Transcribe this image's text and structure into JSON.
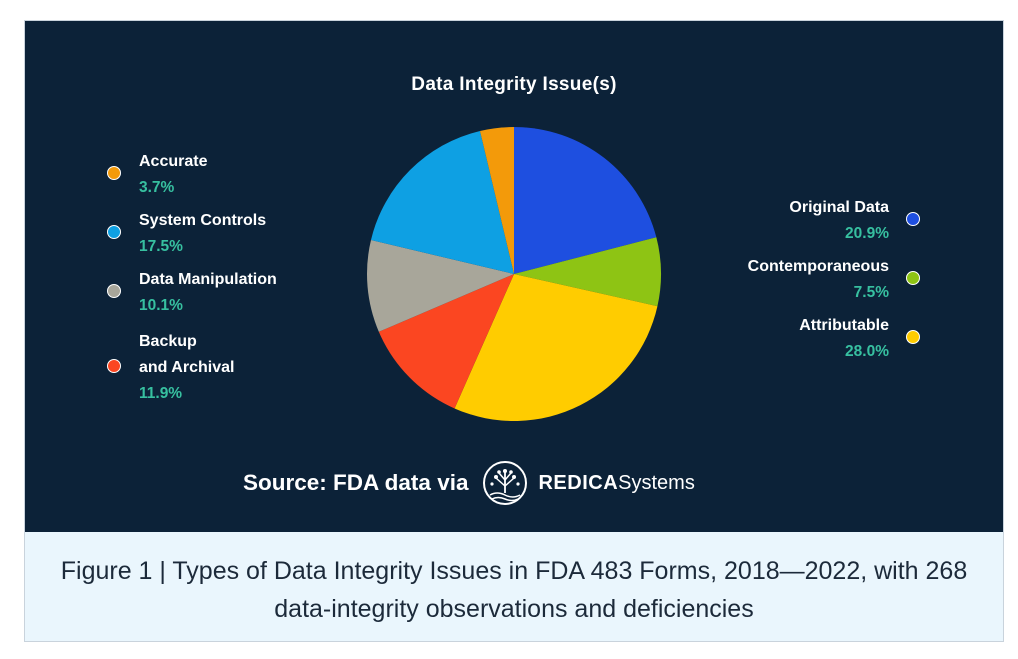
{
  "colors": {
    "background": "#0c2238",
    "percent_text": "#37c0a0",
    "caption_background": "#eaf6fd"
  },
  "chart_data": {
    "type": "pie",
    "title": "Data Integrity Issue(s)",
    "slices": [
      {
        "label": "Original Data",
        "value": 20.9,
        "display": "20.9%",
        "color": "#1e4fe0"
      },
      {
        "label": "Contemporaneous",
        "value": 7.5,
        "display": "7.5%",
        "color": "#8ec414"
      },
      {
        "label": "Attributable",
        "value": 28.0,
        "display": "28.0%",
        "color": "#ffcc00"
      },
      {
        "label": "Backup and Archival",
        "value": 11.9,
        "display": "11.9%",
        "color": "#fb4621"
      },
      {
        "label": "Data Manipulation",
        "value": 10.1,
        "display": "10.1%",
        "color": "#a8a69a"
      },
      {
        "label": "System Controls",
        "value": 17.5,
        "display": "17.5%",
        "color": "#0ea0e3"
      },
      {
        "label": "Accurate",
        "value": 3.7,
        "display": "3.7%",
        "color": "#f39a0a"
      }
    ],
    "legend": {
      "left": [
        {
          "name": "Accurate",
          "pct": "3.7%"
        },
        {
          "name": "System Controls",
          "pct": "17.5%"
        },
        {
          "name": "Data Manipulation",
          "pct": "10.1%"
        },
        {
          "name_line1": "Backup",
          "name_line2": "and Archival",
          "pct": "11.9%"
        }
      ],
      "right": [
        {
          "name": "Original Data",
          "pct": "20.9%"
        },
        {
          "name": "Contemporaneous",
          "pct": "7.5%"
        },
        {
          "name": "Attributable",
          "pct": "28.0%"
        }
      ]
    }
  },
  "source": {
    "text": "Source: FDA data via",
    "logo_icon": "redica-tree-icon",
    "logo_bold": "REDICA",
    "logo_regular": "Systems"
  },
  "caption": "Figure 1 | Types of Data Integrity Issues in FDA 483 Forms, 2018—2022, with 268 data-integrity observations and deficiencies"
}
